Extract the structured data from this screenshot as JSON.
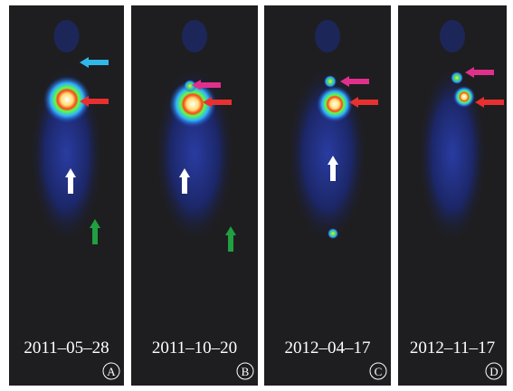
{
  "panels": [
    {
      "date": "2011–05–28",
      "label": "A"
    },
    {
      "date": "2011–10–20",
      "label": "B"
    },
    {
      "date": "2012–04–17",
      "label": "C"
    },
    {
      "date": "2012–11–17",
      "label": "D"
    }
  ]
}
